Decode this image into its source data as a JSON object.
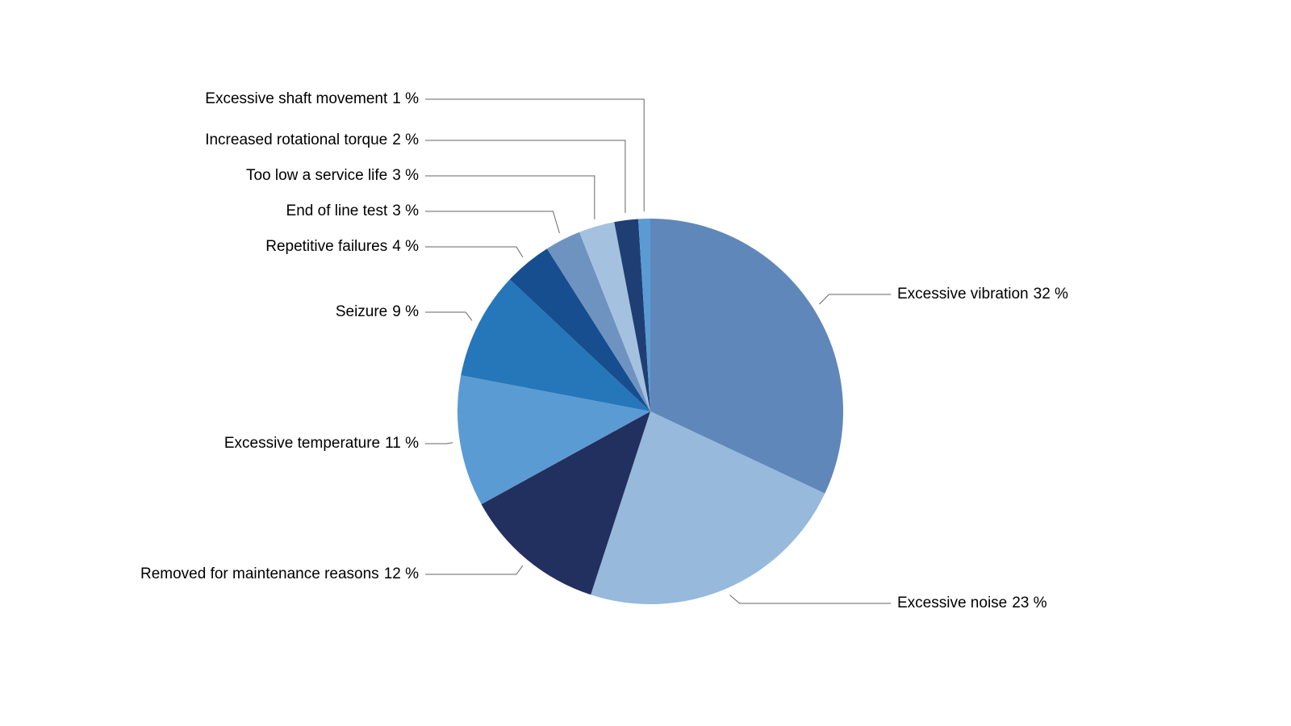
{
  "chart_data": {
    "type": "pie",
    "categories": [
      "Excessive vibration",
      "Excessive noise",
      "Removed for maintenance reasons",
      "Excessive temperature",
      "Seizure",
      "Repetitive failures",
      "End of line test",
      "Too low a service life",
      "Increased rotational torque",
      "Excessive shaft movement"
    ],
    "values": [
      32,
      23,
      12,
      11,
      9,
      4,
      3,
      3,
      2,
      1
    ],
    "value_labels": [
      "32 %",
      "23 %",
      "12 %",
      "11 %",
      "9 %",
      "4 %",
      "3 %",
      "3 %",
      "2 %",
      "1 %"
    ],
    "colors": [
      "#5f87b9",
      "#96b9dc",
      "#21305e",
      "#5b9bd3",
      "#2577ba",
      "#174e8f",
      "#6f93c1",
      "#a4c2e0",
      "#1f3e74",
      "#5b9bd3"
    ]
  }
}
